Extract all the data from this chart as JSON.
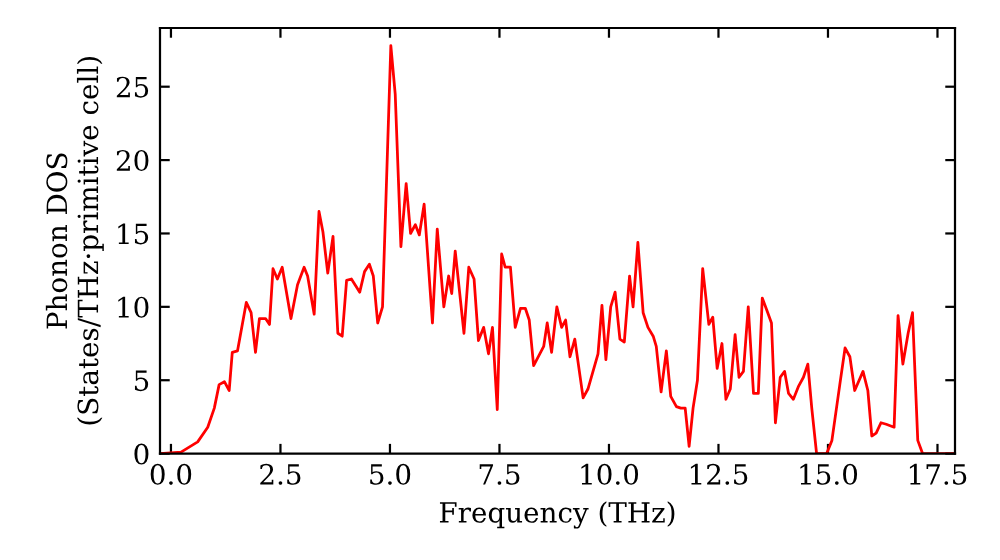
{
  "chart_data": {
    "type": "line",
    "xlabel": "Frequency (THz)",
    "ylabel": "Phonon DOS\n(States/THz·primitive cell)",
    "x": [
      -0.25,
      0.23,
      0.61,
      0.84,
      0.99,
      1.1,
      1.22,
      1.33,
      1.4,
      1.52,
      1.72,
      1.83,
      1.93,
      2.02,
      2.16,
      2.25,
      2.33,
      2.43,
      2.54,
      2.74,
      2.89,
      3.04,
      3.12,
      3.27,
      3.38,
      3.47,
      3.58,
      3.7,
      3.81,
      3.91,
      4.01,
      4.12,
      4.31,
      4.42,
      4.53,
      4.62,
      4.72,
      4.83,
      5.02,
      5.12,
      5.25,
      5.37,
      5.47,
      5.58,
      5.67,
      5.78,
      5.97,
      6.08,
      6.23,
      6.34,
      6.41,
      6.49,
      6.69,
      6.8,
      6.92,
      7.02,
      7.14,
      7.25,
      7.34,
      7.45,
      7.55,
      7.63,
      7.75,
      7.86,
      7.98,
      8.09,
      8.18,
      8.28,
      8.51,
      8.59,
      8.69,
      8.81,
      8.92,
      9.01,
      9.11,
      9.22,
      9.41,
      9.52,
      9.75,
      9.84,
      9.93,
      10.04,
      10.14,
      10.25,
      10.35,
      10.47,
      10.55,
      10.66,
      10.78,
      10.89,
      11.01,
      11.08,
      11.19,
      11.31,
      11.41,
      11.54,
      11.64,
      11.74,
      11.83,
      11.92,
      12.02,
      12.14,
      12.28,
      12.37,
      12.47,
      12.58,
      12.67,
      12.77,
      12.88,
      12.97,
      13.07,
      13.18,
      13.3,
      13.41,
      13.5,
      13.6,
      13.71,
      13.8,
      13.91,
      14.01,
      14.1,
      14.21,
      14.33,
      14.44,
      14.54,
      14.63,
      14.74,
      14.97,
      15.09,
      15.27,
      15.39,
      15.5,
      15.61,
      15.8,
      15.91,
      16.0,
      16.1,
      16.21,
      16.33,
      16.51,
      16.6,
      16.71,
      16.83,
      16.93,
      17.05,
      17.16,
      17.9
    ],
    "series": [
      {
        "color": "#ff0000",
        "values": [
          0,
          0.1,
          0.8,
          1.8,
          3.1,
          4.7,
          4.9,
          4.3,
          6.9,
          7.0,
          10.3,
          9.6,
          6.9,
          9.2,
          9.2,
          8.8,
          12.6,
          11.9,
          12.7,
          9.2,
          11.5,
          12.7,
          12.1,
          9.5,
          16.5,
          15.1,
          12.3,
          14.8,
          8.2,
          8.0,
          11.8,
          11.9,
          11.0,
          12.4,
          12.9,
          12.1,
          8.9,
          10.0,
          27.8,
          24.5,
          14.1,
          18.4,
          15.0,
          15.6,
          14.9,
          17.0,
          8.9,
          15.3,
          10.0,
          12.1,
          10.9,
          13.8,
          8.2,
          12.7,
          11.9,
          7.7,
          8.6,
          6.8,
          8.6,
          3.0,
          13.6,
          12.7,
          12.7,
          8.6,
          9.9,
          9.9,
          9.1,
          6.0,
          7.3,
          8.9,
          6.9,
          10.0,
          8.6,
          9.1,
          6.6,
          7.8,
          3.8,
          4.4,
          6.8,
          10.1,
          6.4,
          10.0,
          11.0,
          7.8,
          7.6,
          12.1,
          10.0,
          14.4,
          9.6,
          8.6,
          8.0,
          7.3,
          4.2,
          7.0,
          3.9,
          3.2,
          3.1,
          3.1,
          0.5,
          3.1,
          5.0,
          12.6,
          8.8,
          9.3,
          5.8,
          7.5,
          3.7,
          4.4,
          8.1,
          5.2,
          5.6,
          10.0,
          4.1,
          4.1,
          10.6,
          9.8,
          8.9,
          2.1,
          5.2,
          5.6,
          4.1,
          3.7,
          4.6,
          5.2,
          6.1,
          3.1,
          0,
          0,
          0.9,
          4.7,
          7.2,
          6.6,
          4.3,
          5.6,
          4.3,
          1.2,
          1.4,
          2.1,
          2.0,
          1.8,
          9.4,
          6.1,
          8.2,
          9.6,
          0.9,
          0,
          0
        ]
      }
    ],
    "xlim": [
      -0.25,
      17.9
    ],
    "ylim": [
      0,
      29
    ],
    "xticks": [
      {
        "value": 0,
        "label": "0.0"
      },
      {
        "value": 2.5,
        "label": "2.5"
      },
      {
        "value": 5,
        "label": "5.0"
      },
      {
        "value": 7.5,
        "label": "7.5"
      },
      {
        "value": 10,
        "label": "10.0"
      },
      {
        "value": 12.5,
        "label": "12.5"
      },
      {
        "value": 15,
        "label": "15.0"
      },
      {
        "value": 17.5,
        "label": "17.5"
      }
    ],
    "yticks": [
      0,
      5,
      10,
      15,
      20,
      25
    ],
    "grid": false,
    "line_style": "solid",
    "marker": "none"
  }
}
